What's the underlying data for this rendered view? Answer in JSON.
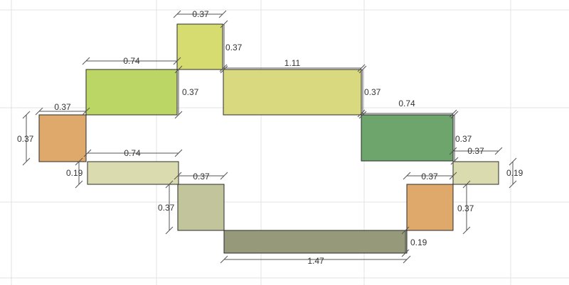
{
  "diagram": {
    "blocks": [
      {
        "name": "block-top-cap",
        "color": "#d6dc70"
      },
      {
        "name": "block-upper-left",
        "color": "#bcd665"
      },
      {
        "name": "block-upper-right",
        "color": "#d9da80"
      },
      {
        "name": "block-left-end",
        "color": "#dea96a"
      },
      {
        "name": "block-right-green",
        "color": "#6ea56c"
      },
      {
        "name": "block-left-strip",
        "color": "#dadcb0"
      },
      {
        "name": "block-right-strip",
        "color": "#dadcb0"
      },
      {
        "name": "block-lower-left",
        "color": "#c2c49b"
      },
      {
        "name": "block-right-end",
        "color": "#dea96a"
      },
      {
        "name": "block-bottom",
        "color": "#979a7a"
      }
    ],
    "labels": [
      "0.37",
      "0.37",
      "0.74",
      "0.37",
      "1.11",
      "0.37",
      "0.37",
      "0.74",
      "0.37",
      "0.37",
      "0.37",
      "0.74",
      "0.19",
      "0.37",
      "0.19",
      "0.37",
      "0.37",
      "0.37",
      "0.19",
      "1.47"
    ]
  }
}
